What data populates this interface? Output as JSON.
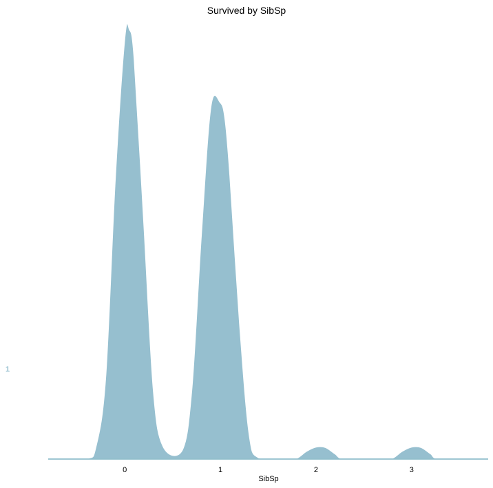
{
  "chart_data": {
    "type": "area",
    "title": "Survived by SibSp",
    "xlabel": "SibSp",
    "ylabel": "",
    "x_ticks": [
      "0",
      "1",
      "2",
      "3"
    ],
    "xlim": [
      -0.8,
      3.8
    ],
    "group_label": "1",
    "colors": {
      "fill": "#96bfcf",
      "outline": "#ffffff",
      "baseline": "#7fb3c4",
      "group_label": "#96bfcf"
    },
    "grid": false,
    "series": [
      {
        "name": "1",
        "x": [
          -0.8,
          -0.4,
          -0.3,
          -0.2,
          -0.1,
          0.0,
          0.05,
          0.1,
          0.2,
          0.3,
          0.4,
          0.6,
          0.7,
          0.8,
          0.9,
          1.0,
          1.05,
          1.1,
          1.2,
          1.3,
          1.4,
          1.7,
          1.8,
          1.9,
          2.0,
          2.1,
          2.2,
          2.3,
          2.7,
          2.8,
          2.9,
          3.0,
          3.1,
          3.2,
          3.3,
          3.8
        ],
        "density": [
          0,
          0.001,
          0.03,
          0.19,
          0.65,
          0.98,
          1.0,
          0.93,
          0.55,
          0.16,
          0.03,
          0.02,
          0.16,
          0.52,
          0.82,
          0.83,
          0.79,
          0.66,
          0.32,
          0.06,
          0.003,
          0,
          0.002,
          0.018,
          0.028,
          0.027,
          0.012,
          0,
          0,
          0.002,
          0.018,
          0.028,
          0.027,
          0.012,
          0,
          0
        ]
      }
    ]
  }
}
